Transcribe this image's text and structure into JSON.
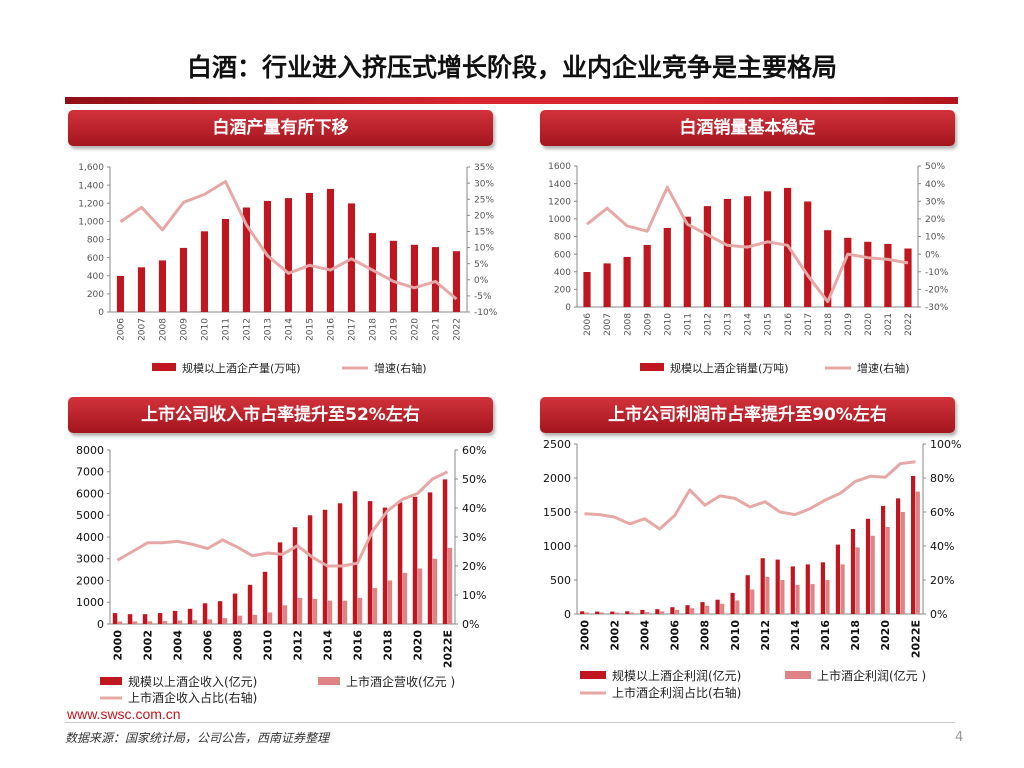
{
  "page": {
    "title": "白酒：行业进入挤压式增长阶段，业内企业竞争是主要格局",
    "website": "www.swsc.com.cn",
    "source": "数据来源：国家统计局，公司公告，西南证券整理",
    "page_number": "4"
  },
  "panels": {
    "p1": "白酒产量有所下移",
    "p2": "白酒销量基本稳定",
    "p3": "上市公司收入市占率提升至52%左右",
    "p4": "上市公司利润市占率提升至90%左右"
  },
  "colors": {
    "bar_dark": "#c0161f",
    "bar_light": "#de8486",
    "line": "#e6a8a6",
    "title_bg": "#b81e26"
  },
  "chart_data": [
    {
      "id": "c1",
      "type": "bar",
      "categories": [
        "2006",
        "2007",
        "2008",
        "2009",
        "2010",
        "2011",
        "2012",
        "2013",
        "2014",
        "2015",
        "2016",
        "2017",
        "2018",
        "2019",
        "2020",
        "2021",
        "2022"
      ],
      "ylim": [
        0,
        1600
      ],
      "y2lim": [
        -10,
        35
      ],
      "yticks": [
        "0",
        "200",
        "400",
        "600",
        "800",
        "1,000",
        "1,200",
        "1,400",
        "1,600"
      ],
      "y2ticks": [
        "-10%",
        "-5%",
        "0%",
        "5%",
        "10%",
        "15%",
        "20%",
        "25%",
        "30%",
        "35%"
      ],
      "series": [
        {
          "name": "规模以上酒企产量(万吨)",
          "kind": "bar",
          "values": [
            397,
            493,
            569,
            707,
            891,
            1026,
            1153,
            1226,
            1257,
            1313,
            1358,
            1198,
            871,
            786,
            741,
            716,
            671
          ]
        },
        {
          "name": "增速(右轴)",
          "kind": "line",
          "axis": "right",
          "values": [
            18,
            22.5,
            15.5,
            24,
            26.5,
            30.5,
            17,
            7.5,
            2,
            4.5,
            3,
            6.5,
            3,
            -0.5,
            -2.5,
            -0.5,
            -6
          ]
        }
      ]
    },
    {
      "id": "c2",
      "type": "bar",
      "categories": [
        "2006",
        "2007",
        "2008",
        "2009",
        "2010",
        "2011",
        "2012",
        "2013",
        "2014",
        "2015",
        "2016",
        "2017",
        "2018",
        "2019",
        "2020",
        "2021",
        "2022"
      ],
      "ylim": [
        0,
        1600
      ],
      "y2lim": [
        -30,
        50
      ],
      "yticks": [
        "0",
        "200",
        "400",
        "600",
        "800",
        "1000",
        "1200",
        "1400",
        "1600"
      ],
      "y2ticks": [
        "-30%",
        "-20%",
        "-10%",
        "0%",
        "10%",
        "20%",
        "30%",
        "40%",
        "50%"
      ],
      "series": [
        {
          "name": "规模以上酒企销量(万吨)",
          "kind": "bar",
          "values": [
            397,
            495,
            568,
            703,
            897,
            1025,
            1145,
            1226,
            1257,
            1313,
            1352,
            1197,
            871,
            785,
            740,
            716,
            664
          ]
        },
        {
          "name": "增速(右轴)",
          "kind": "line",
          "axis": "right",
          "values": [
            17,
            26,
            16,
            13,
            38,
            17,
            11,
            5,
            4,
            7,
            5,
            -12,
            -27,
            0,
            -2,
            -3,
            -5
          ]
        }
      ]
    },
    {
      "id": "c3",
      "type": "bar",
      "categories": [
        "2000",
        "2001",
        "2002",
        "2003",
        "2004",
        "2005",
        "2006",
        "2007",
        "2008",
        "2009",
        "2010",
        "2011",
        "2012",
        "2013",
        "2014",
        "2015",
        "2016",
        "2017",
        "2018",
        "2019",
        "2020",
        "2021",
        "2022E"
      ],
      "xlabels": [
        "2000",
        "2002",
        "2004",
        "2006",
        "2008",
        "2010",
        "2012",
        "2014",
        "2016",
        "2018",
        "2020",
        "2022E"
      ],
      "ylim": [
        0,
        8000
      ],
      "y2lim": [
        0,
        60
      ],
      "yticks": [
        "0",
        "1000",
        "2000",
        "3000",
        "4000",
        "5000",
        "6000",
        "7000",
        "8000"
      ],
      "y2ticks": [
        "0%",
        "10%",
        "20%",
        "30%",
        "40%",
        "50%",
        "60%"
      ],
      "series": [
        {
          "name": "规模以上酒企收入(亿元)",
          "kind": "bar",
          "values": [
            500,
            450,
            450,
            500,
            600,
            700,
            950,
            1050,
            1400,
            1800,
            2400,
            3750,
            4450,
            5000,
            5250,
            5550,
            6100,
            5650,
            5350,
            5600,
            5850,
            6050,
            6650
          ]
        },
        {
          "name": "上市酒企营收(亿元 )",
          "kind": "bar",
          "values": [
            110,
            120,
            125,
            135,
            160,
            175,
            210,
            270,
            380,
            420,
            530,
            860,
            1200,
            1150,
            1070,
            1070,
            1200,
            1650,
            2000,
            2350,
            2550,
            3000,
            3500
          ]
        },
        {
          "name": "上市酒企收入占比(右轴)",
          "kind": "line",
          "axis": "right",
          "values": [
            22,
            25,
            28,
            28,
            28.5,
            27.5,
            26,
            29,
            26.5,
            23.5,
            24.5,
            24,
            27,
            23,
            20,
            20,
            21,
            32,
            39,
            43,
            45,
            50,
            52.5
          ]
        }
      ]
    },
    {
      "id": "c4",
      "type": "bar",
      "categories": [
        "2000",
        "2001",
        "2002",
        "2003",
        "2004",
        "2005",
        "2006",
        "2007",
        "2008",
        "2009",
        "2010",
        "2011",
        "2012",
        "2013",
        "2014",
        "2015",
        "2016",
        "2017",
        "2018",
        "2019",
        "2020",
        "2021",
        "2022E"
      ],
      "xlabels": [
        "2000",
        "2002",
        "2004",
        "2006",
        "2008",
        "2010",
        "2012",
        "2014",
        "2016",
        "2018",
        "2020",
        "2022E"
      ],
      "ylim": [
        0,
        2500
      ],
      "y2lim": [
        0,
        100
      ],
      "yticks": [
        "0",
        "500",
        "1000",
        "1500",
        "2000",
        "2500"
      ],
      "y2ticks": [
        "0%",
        "20%",
        "40%",
        "60%",
        "80%",
        "100%"
      ],
      "series": [
        {
          "name": "规模以上酒企利润(亿元)",
          "kind": "bar",
          "values": [
            40,
            35,
            35,
            40,
            60,
            70,
            100,
            130,
            175,
            210,
            310,
            570,
            820,
            800,
            700,
            730,
            760,
            1020,
            1250,
            1400,
            1590,
            1700,
            2030
          ]
        },
        {
          "name": "上市酒企利润(亿元 )",
          "kind": "bar",
          "values": [
            22,
            20,
            21,
            20,
            30,
            38,
            60,
            85,
            120,
            150,
            200,
            360,
            545,
            500,
            430,
            440,
            500,
            730,
            980,
            1150,
            1280,
            1500,
            1800
          ]
        },
        {
          "name": "上市酒企利润占比(右轴)",
          "kind": "line",
          "axis": "right",
          "values": [
            59,
            58.5,
            57,
            53,
            56,
            50,
            58,
            73,
            64,
            69.5,
            68,
            63,
            66,
            60,
            58.5,
            62,
            67,
            71,
            78,
            81,
            80.5,
            88.5,
            89.5
          ]
        }
      ]
    }
  ]
}
